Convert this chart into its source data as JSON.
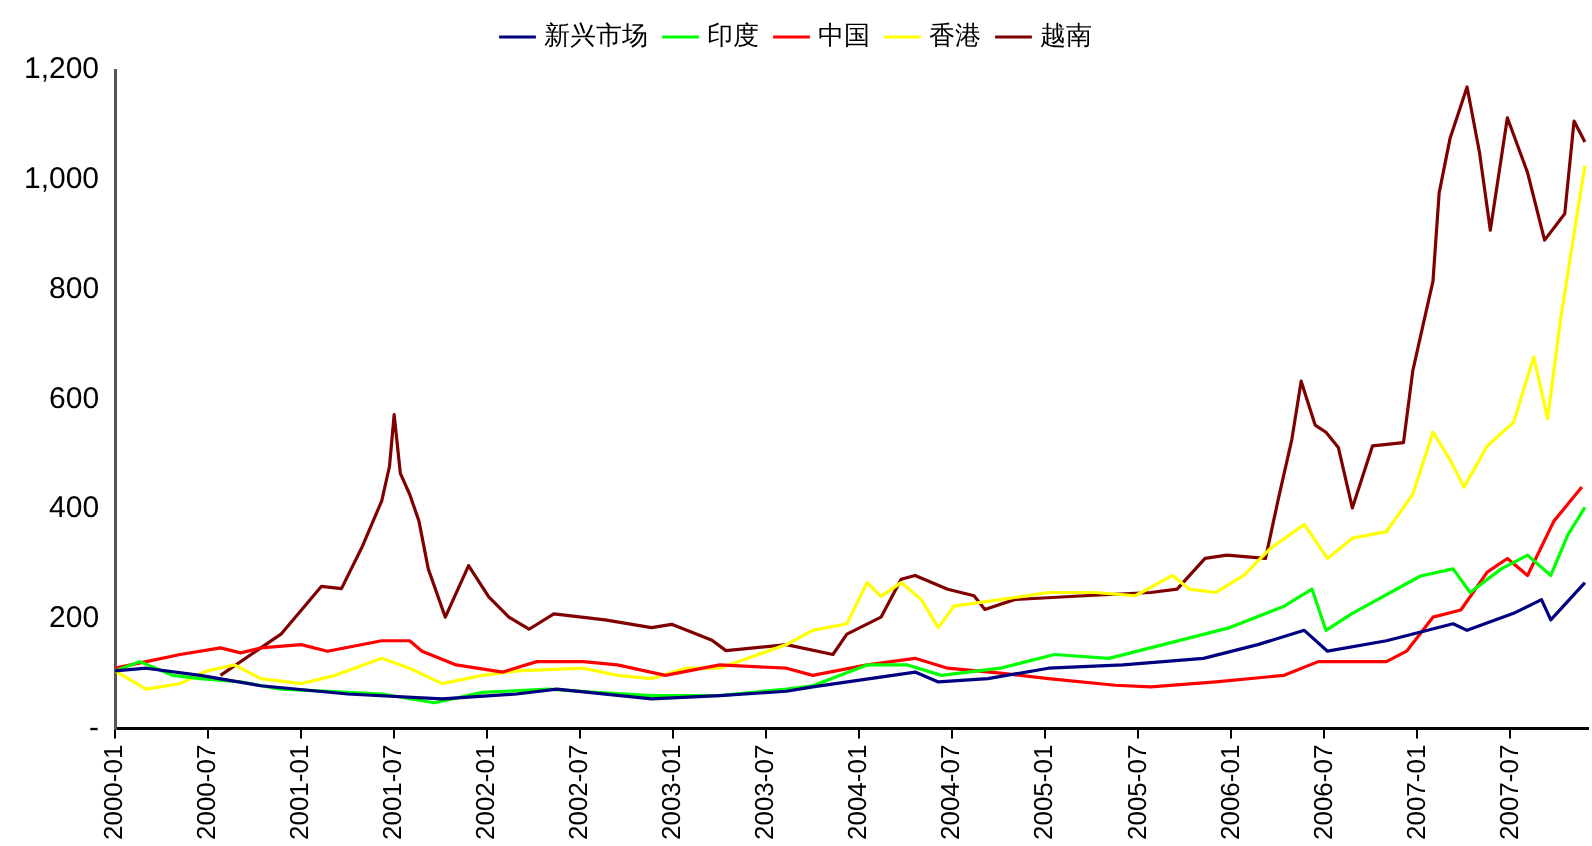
{
  "chart_data": {
    "type": "line",
    "legend": "top",
    "grid": false,
    "marker": "none",
    "line_style": "solid",
    "xlim": [
      "2000-01",
      "2007-12"
    ],
    "xticks": [
      "2000-01",
      "2000-07",
      "2001-01",
      "2001-07",
      "2002-01",
      "2002-07",
      "2003-01",
      "2003-07",
      "2004-01",
      "2004-07",
      "2005-01",
      "2005-07",
      "2006-01",
      "2006-07",
      "2007-01",
      "2007-07"
    ],
    "ylim": [
      0,
      1200
    ],
    "yticks": [
      {
        "value": 0,
        "label": "-"
      },
      200,
      400,
      600,
      800,
      {
        "value": 1000,
        "label": "1,000"
      },
      {
        "value": 1200,
        "label": "1,200"
      }
    ],
    "series": [
      {
        "name": "新兴市场",
        "color": "#000080",
        "x": [
          "2000-01-01",
          "2000-03-01",
          "2000-06-16",
          "2000-10-13",
          "2001-04-01",
          "2001-10-04",
          "2002-02-28",
          "2002-05-16",
          "2002-11-19",
          "2003-04-01",
          "2003-08-10",
          "2003-10-01",
          "2004-04-19",
          "2004-06-04",
          "2004-09-10",
          "2005-01-07",
          "2005-06-01",
          "2005-11-07",
          "2006-02-22",
          "2006-05-22",
          "2006-07-07",
          "2006-11-01",
          "2007-03-10",
          "2007-04-07",
          "2007-07-07",
          "2007-09-01",
          "2007-09-19",
          "2007-11-25"
        ],
        "values": [
          105,
          110,
          97,
          78,
          63,
          54,
          63,
          72,
          54,
          60,
          68,
          76,
          103,
          85,
          91,
          110,
          116,
          128,
          153,
          179,
          141,
          160,
          191,
          179,
          210,
          235,
          198,
          266
        ]
      },
      {
        "name": "印度",
        "color": "#00ff00",
        "x": [
          "2000-01-01",
          "2000-02-19",
          "2000-04-22",
          "2000-06-16",
          "2000-09-04",
          "2000-11-22",
          "2001-04-01",
          "2001-06-07",
          "2001-09-19",
          "2001-12-22",
          "2002-05-01",
          "2002-08-01",
          "2002-11-19",
          "2003-04-01",
          "2003-08-10",
          "2003-10-01",
          "2004-01-16",
          "2004-04-04",
          "2004-06-10",
          "2004-10-04",
          "2005-01-19",
          "2005-05-04",
          "2005-08-19",
          "2005-12-28",
          "2006-04-13",
          "2006-06-07",
          "2006-07-04",
          "2006-08-25",
          "2007-01-07",
          "2007-03-10",
          "2007-04-13",
          "2007-06-13",
          "2007-08-04",
          "2007-09-19",
          "2007-10-22",
          "2007-11-25"
        ],
        "values": [
          105,
          122,
          97,
          91,
          85,
          72,
          66,
          63,
          47,
          66,
          72,
          66,
          60,
          60,
          72,
          78,
          116,
          116,
          97,
          110,
          135,
          128,
          153,
          184,
          223,
          254,
          179,
          210,
          278,
          291,
          248,
          291,
          316,
          279,
          353,
          403
        ]
      },
      {
        "name": "中国",
        "color": "#ff0000",
        "x": [
          "2000-01-01",
          "2000-03-01",
          "2000-05-07",
          "2000-07-25",
          "2000-09-04",
          "2000-10-13",
          "2001-01-01",
          "2001-02-22",
          "2001-06-07",
          "2001-08-01",
          "2001-08-25",
          "2001-11-01",
          "2002-02-01",
          "2002-04-07",
          "2002-07-07",
          "2002-09-13",
          "2002-12-16",
          "2003-04-01",
          "2003-08-10",
          "2003-10-01",
          "2004-01-16",
          "2004-04-19",
          "2004-06-22",
          "2004-10-04",
          "2005-01-07",
          "2005-05-16",
          "2005-07-25",
          "2005-12-01",
          "2006-04-13",
          "2006-06-19",
          "2006-11-01",
          "2006-12-10",
          "2007-02-01",
          "2007-03-25",
          "2007-05-16",
          "2007-06-25",
          "2007-08-04",
          "2007-09-25",
          "2007-11-19"
        ],
        "values": [
          110,
          122,
          135,
          147,
          138,
          147,
          153,
          141,
          160,
          160,
          141,
          116,
          103,
          122,
          122,
          116,
          97,
          116,
          110,
          97,
          116,
          128,
          110,
          101,
          91,
          79,
          76,
          85,
          97,
          122,
          122,
          141,
          203,
          216,
          285,
          310,
          279,
          378,
          440
        ]
      },
      {
        "name": "香港",
        "color": "#ffff00",
        "x": [
          "2000-01-01",
          "2000-03-01",
          "2000-05-07",
          "2000-06-28",
          "2000-08-22",
          "2000-10-13",
          "2001-01-01",
          "2001-03-07",
          "2001-06-07",
          "2001-08-01",
          "2001-10-04",
          "2001-12-22",
          "2002-02-28",
          "2002-07-07",
          "2002-09-13",
          "2002-11-19",
          "2003-01-25",
          "2003-04-01",
          "2003-08-10",
          "2003-10-01",
          "2003-12-07",
          "2004-01-16",
          "2004-02-13",
          "2004-03-22",
          "2004-05-01",
          "2004-06-04",
          "2004-07-04",
          "2004-10-04",
          "2005-01-07",
          "2005-04-07",
          "2005-06-25",
          "2005-09-07",
          "2005-10-10",
          "2005-12-01",
          "2006-01-25",
          "2006-03-16",
          "2006-05-22",
          "2006-07-07",
          "2006-08-25",
          "2006-11-01",
          "2006-12-22",
          "2007-02-01",
          "2007-03-04",
          "2007-04-01",
          "2007-05-16",
          "2007-07-07",
          "2007-08-16",
          "2007-09-13",
          "2007-10-07",
          "2007-11-04",
          "2007-11-25"
        ],
        "values": [
          105,
          72,
          82,
          105,
          116,
          91,
          82,
          97,
          128,
          110,
          82,
          97,
          105,
          110,
          97,
          91,
          110,
          110,
          153,
          179,
          191,
          266,
          241,
          266,
          235,
          184,
          223,
          235,
          248,
          248,
          242,
          279,
          254,
          248,
          279,
          328,
          372,
          310,
          347,
          359,
          427,
          540,
          490,
          440,
          515,
          558,
          677,
          565,
          740,
          901,
          1026
        ]
      },
      {
        "name": "越南",
        "color": "#800000",
        "x": [
          "2000-07-25",
          "2000-11-22",
          "2001-02-10",
          "2001-03-19",
          "2001-04-28",
          "2001-06-07",
          "2001-06-22",
          "2001-07-01",
          "2001-07-13",
          "2001-08-01",
          "2001-08-19",
          "2001-09-07",
          "2001-10-10",
          "2001-11-25",
          "2002-01-04",
          "2002-02-13",
          "2002-03-22",
          "2002-05-10",
          "2002-08-19",
          "2002-11-19",
          "2002-12-28",
          "2003-03-16",
          "2003-04-13",
          "2003-08-10",
          "2003-11-10",
          "2003-12-07",
          "2004-02-13",
          "2004-03-22",
          "2004-04-19",
          "2004-06-22",
          "2004-08-13",
          "2004-09-04",
          "2004-11-01",
          "2005-03-16",
          "2005-07-25",
          "2005-09-16",
          "2005-11-10",
          "2005-12-22",
          "2006-03-07",
          "2006-04-01",
          "2006-04-28",
          "2006-05-16",
          "2006-06-13",
          "2006-07-04",
          "2006-07-28",
          "2006-08-25",
          "2006-10-04",
          "2006-12-04",
          "2006-12-22",
          "2007-01-13",
          "2007-02-01",
          "2007-02-13",
          "2007-03-04",
          "2007-04-07",
          "2007-05-01",
          "2007-05-22",
          "2007-06-25",
          "2007-08-04",
          "2007-09-07",
          "2007-10-16",
          "2007-11-04",
          "2007-11-25"
        ],
        "values": [
          97,
          172,
          259,
          255,
          329,
          415,
          478,
          572,
          465,
          427,
          378,
          291,
          203,
          297,
          240,
          203,
          181,
          209,
          198,
          184,
          190,
          161,
          142,
          153,
          135,
          172,
          203,
          272,
          279,
          254,
          242,
          217,
          235,
          242,
          248,
          254,
          310,
          316,
          310,
          415,
          527,
          633,
          553,
          540,
          512,
          402,
          515,
          521,
          652,
          740,
          815,
          976,
          1075,
          1169,
          1050,
          908,
          1113,
          1013,
          890,
          938,
          1107,
          1069
        ]
      }
    ]
  }
}
